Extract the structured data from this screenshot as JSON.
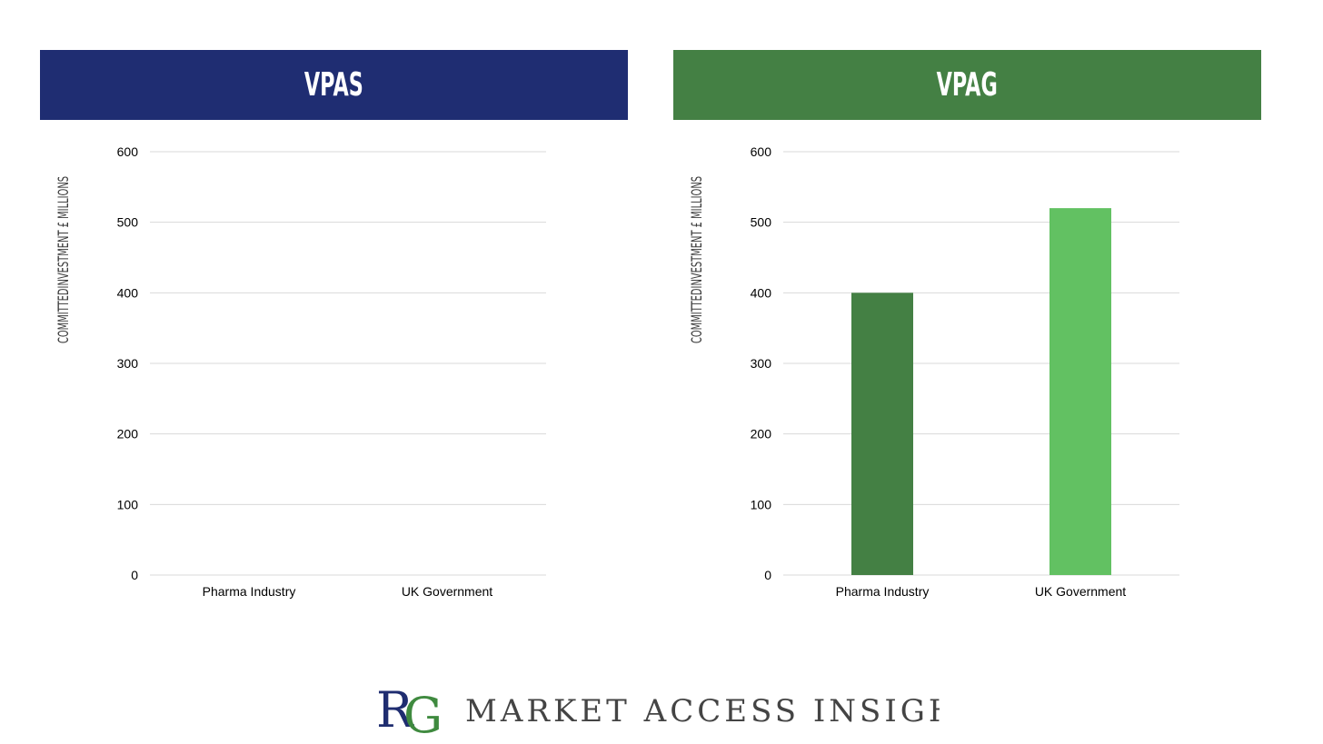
{
  "colors": {
    "vpas_header": "#1f2d72",
    "vpag_header": "#448044",
    "bar_pharma": "#448044",
    "bar_government": "#62c162",
    "gridline": "#d9d9d9"
  },
  "footer": {
    "logo_r": "R",
    "logo_g": "G",
    "brand_text": "MARKET ACCESS INSIGHTS"
  },
  "chart_data": [
    {
      "type": "bar",
      "title": "VPAS",
      "ylabel": "COMMITTEDINVESTMENT £ MILLIONS",
      "xlabel": "",
      "categories": [
        "Pharma Industry",
        "UK Government"
      ],
      "values": [
        0,
        0
      ],
      "ylim": [
        0,
        600
      ],
      "yticks": [
        "0",
        "100",
        "200",
        "300",
        "400",
        "500",
        "600"
      ],
      "grid": true
    },
    {
      "type": "bar",
      "title": "VPAG",
      "ylabel": "COMMITTEDINVESTMENT £ MILLIONS",
      "xlabel": "",
      "categories": [
        "Pharma Industry",
        "UK Government"
      ],
      "values": [
        400,
        520
      ],
      "ylim": [
        0,
        600
      ],
      "yticks": [
        "0",
        "100",
        "200",
        "300",
        "400",
        "500",
        "600"
      ],
      "grid": true
    }
  ]
}
